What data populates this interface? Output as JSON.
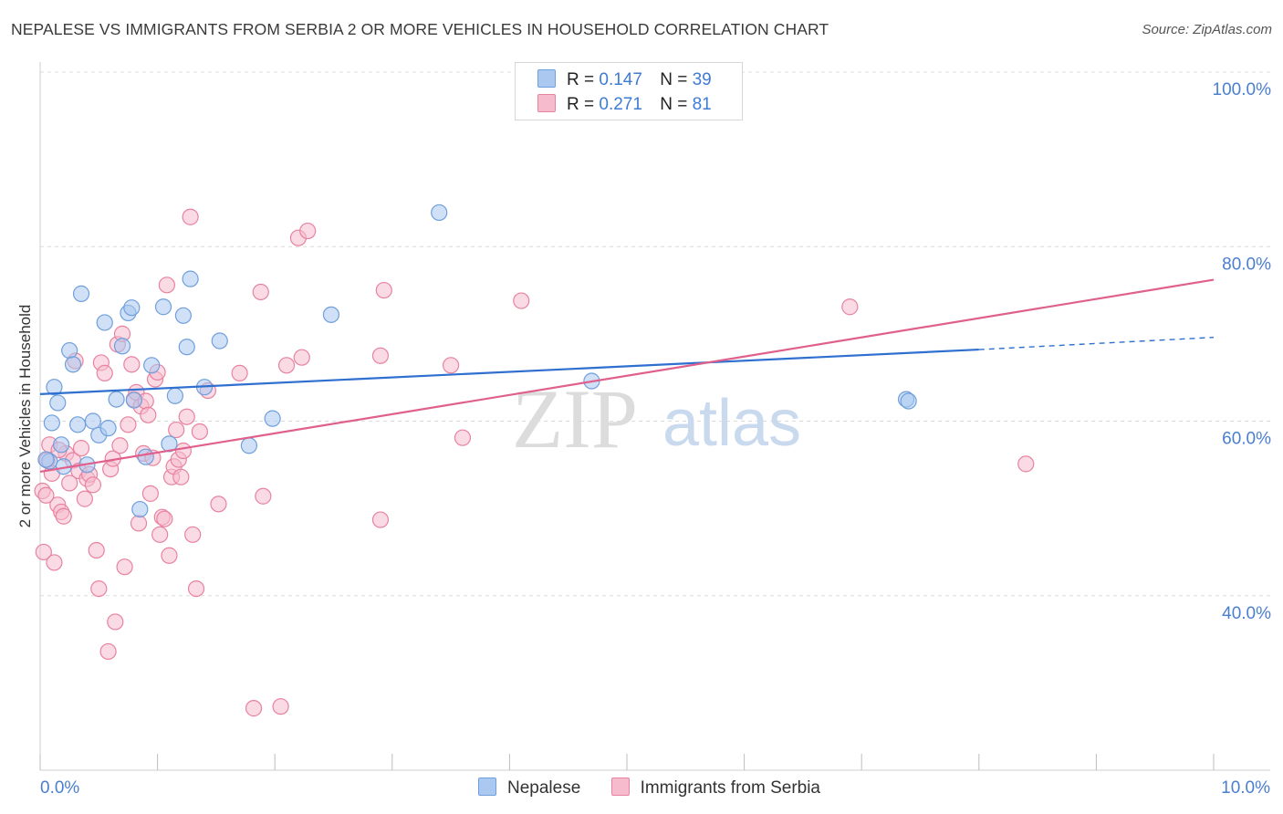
{
  "title": "NEPALESE VS IMMIGRANTS FROM SERBIA 2 OR MORE VEHICLES IN HOUSEHOLD CORRELATION CHART",
  "source": "Source: ZipAtlas.com",
  "watermark": {
    "zip": "ZIP",
    "atlas": "atlas"
  },
  "legend_top": [
    {
      "r_label": "R =",
      "r_value": "0.147",
      "n_label": "N =",
      "n_value": "39"
    },
    {
      "r_label": "R =",
      "r_value": "0.271",
      "n_label": "N =",
      "n_value": "81"
    }
  ],
  "colors": {
    "blue_fill": "#aac8f0",
    "blue_stroke": "#6f9fdc",
    "blue_line": "#2f6fd0",
    "pink_fill": "#f6bccd",
    "pink_stroke": "#e8839f",
    "pink_line": "#e0608c",
    "tick_label": "#4a7fd0",
    "grid": "#dcdcdc"
  },
  "chart_data": {
    "type": "scatter",
    "title": "NEPALESE VS IMMIGRANTS FROM SERBIA 2 OR MORE VEHICLES IN HOUSEHOLD CORRELATION CHART",
    "xlabel": "",
    "ylabel": "2 or more Vehicles in Household",
    "xlim": [
      0,
      10
    ],
    "ylim": [
      20,
      100
    ],
    "x_tick_labels": [
      {
        "value": 0,
        "label": "0.0%"
      },
      {
        "value": 10,
        "label": "10.0%"
      }
    ],
    "y_tick_labels": [
      {
        "value": 100,
        "label": "100.0%"
      },
      {
        "value": 80,
        "label": "80.0%"
      },
      {
        "value": 60,
        "label": "60.0%"
      },
      {
        "value": 40,
        "label": "40.0%"
      }
    ],
    "series": [
      {
        "name": "Nepalese",
        "color": "blue",
        "trend": {
          "x_start": 0,
          "y_start": 63.1,
          "x_end": 8.0,
          "y_end": 68.2,
          "dash_x_end": 10,
          "dash_y_end": 69.6
        },
        "points": [
          [
            0.08,
            55.4
          ],
          [
            0.1,
            59.8
          ],
          [
            0.12,
            63.9
          ],
          [
            0.15,
            62.1
          ],
          [
            0.18,
            57.3
          ],
          [
            0.2,
            54.8
          ],
          [
            0.25,
            68.1
          ],
          [
            0.28,
            66.5
          ],
          [
            0.32,
            59.6
          ],
          [
            0.35,
            74.6
          ],
          [
            0.4,
            55.0
          ],
          [
            0.45,
            60.0
          ],
          [
            0.5,
            58.4
          ],
          [
            0.55,
            71.3
          ],
          [
            0.58,
            59.2
          ],
          [
            0.65,
            62.5
          ],
          [
            0.7,
            68.6
          ],
          [
            0.75,
            72.4
          ],
          [
            0.78,
            73.0
          ],
          [
            0.8,
            62.4
          ],
          [
            0.85,
            49.9
          ],
          [
            0.9,
            55.9
          ],
          [
            0.95,
            66.4
          ],
          [
            1.05,
            73.1
          ],
          [
            1.1,
            57.4
          ],
          [
            1.15,
            62.9
          ],
          [
            1.22,
            72.1
          ],
          [
            1.25,
            68.5
          ],
          [
            1.28,
            76.3
          ],
          [
            1.4,
            63.9
          ],
          [
            1.53,
            69.2
          ],
          [
            1.78,
            57.2
          ],
          [
            1.98,
            60.3
          ],
          [
            2.48,
            72.2
          ],
          [
            3.4,
            83.9
          ],
          [
            4.7,
            64.6
          ],
          [
            7.38,
            62.5
          ],
          [
            7.4,
            62.3
          ],
          [
            0.05,
            55.6
          ]
        ]
      },
      {
        "name": "Immigrants from Serbia",
        "color": "pink",
        "trend": {
          "x_start": 0,
          "y_start": 54.2,
          "x_end": 10,
          "y_end": 76.2
        },
        "points": [
          [
            0.02,
            52.0
          ],
          [
            0.03,
            45.0
          ],
          [
            0.06,
            55.5
          ],
          [
            0.1,
            54.0
          ],
          [
            0.12,
            43.8
          ],
          [
            0.15,
            50.4
          ],
          [
            0.18,
            49.6
          ],
          [
            0.2,
            49.1
          ],
          [
            0.22,
            56.3
          ],
          [
            0.25,
            52.9
          ],
          [
            0.28,
            55.5
          ],
          [
            0.3,
            66.9
          ],
          [
            0.33,
            54.3
          ],
          [
            0.35,
            56.9
          ],
          [
            0.38,
            51.1
          ],
          [
            0.4,
            53.4
          ],
          [
            0.42,
            53.9
          ],
          [
            0.45,
            52.7
          ],
          [
            0.48,
            45.2
          ],
          [
            0.5,
            40.8
          ],
          [
            0.52,
            66.7
          ],
          [
            0.55,
            65.5
          ],
          [
            0.58,
            33.6
          ],
          [
            0.6,
            54.5
          ],
          [
            0.62,
            55.7
          ],
          [
            0.64,
            37.0
          ],
          [
            0.66,
            68.8
          ],
          [
            0.68,
            57.2
          ],
          [
            0.7,
            70.0
          ],
          [
            0.72,
            43.3
          ],
          [
            0.75,
            59.6
          ],
          [
            0.78,
            66.5
          ],
          [
            0.8,
            62.5
          ],
          [
            0.82,
            63.3
          ],
          [
            0.84,
            48.3
          ],
          [
            0.86,
            61.7
          ],
          [
            0.88,
            56.3
          ],
          [
            0.9,
            62.3
          ],
          [
            0.92,
            60.7
          ],
          [
            0.94,
            51.7
          ],
          [
            0.96,
            55.8
          ],
          [
            0.98,
            64.8
          ],
          [
            1.0,
            65.6
          ],
          [
            1.02,
            47.0
          ],
          [
            1.04,
            49.0
          ],
          [
            1.06,
            48.8
          ],
          [
            1.08,
            75.6
          ],
          [
            1.1,
            44.6
          ],
          [
            1.12,
            53.6
          ],
          [
            1.14,
            54.8
          ],
          [
            1.16,
            59.0
          ],
          [
            1.18,
            55.6
          ],
          [
            1.2,
            53.6
          ],
          [
            1.22,
            56.6
          ],
          [
            1.25,
            60.5
          ],
          [
            1.28,
            83.4
          ],
          [
            1.3,
            47.0
          ],
          [
            1.33,
            40.8
          ],
          [
            1.36,
            58.8
          ],
          [
            1.43,
            63.5
          ],
          [
            1.52,
            50.5
          ],
          [
            1.7,
            65.5
          ],
          [
            1.88,
            74.8
          ],
          [
            1.9,
            51.4
          ],
          [
            1.82,
            27.1
          ],
          [
            2.05,
            27.3
          ],
          [
            2.1,
            66.4
          ],
          [
            2.2,
            81.0
          ],
          [
            2.23,
            67.3
          ],
          [
            2.28,
            81.8
          ],
          [
            2.93,
            75.0
          ],
          [
            2.9,
            48.7
          ],
          [
            2.9,
            67.5
          ],
          [
            3.5,
            66.4
          ],
          [
            3.6,
            58.1
          ],
          [
            4.1,
            73.8
          ],
          [
            6.9,
            73.1
          ],
          [
            8.4,
            55.1
          ],
          [
            0.08,
            57.3
          ],
          [
            0.16,
            56.7
          ],
          [
            0.05,
            51.5
          ]
        ]
      }
    ],
    "legend_position": "bottom-center"
  }
}
